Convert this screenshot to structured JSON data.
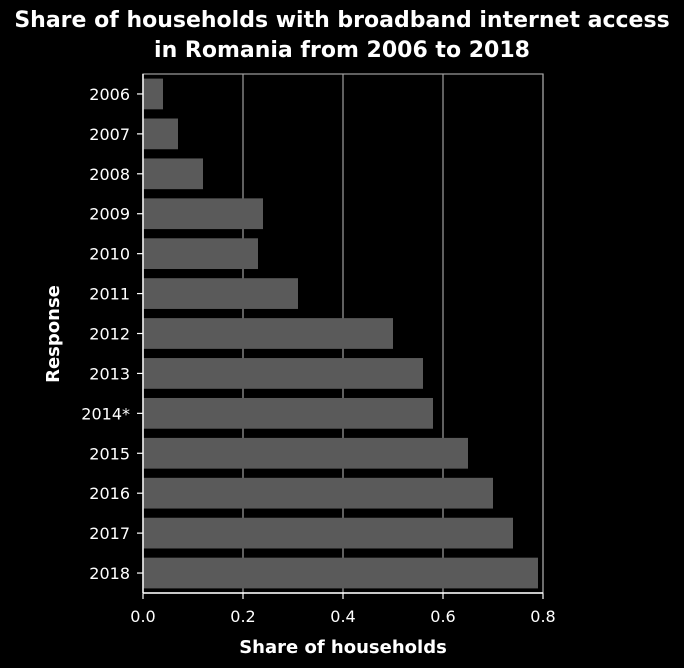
{
  "chart_data": {
    "type": "bar",
    "orientation": "horizontal",
    "title": "Share of households with broadband internet access in Romania from 2006 to 2018",
    "xlabel": "Share of households",
    "ylabel": "Response",
    "categories": [
      "2006",
      "2007",
      "2008",
      "2009",
      "2010",
      "2011",
      "2012",
      "2013",
      "2014*",
      "2015",
      "2016",
      "2017",
      "2018"
    ],
    "values": [
      0.04,
      0.07,
      0.12,
      0.24,
      0.23,
      0.31,
      0.5,
      0.56,
      0.58,
      0.65,
      0.7,
      0.74,
      0.79
    ],
    "xlim": [
      0,
      0.8
    ],
    "xticks": [
      "0.0",
      "0.2",
      "0.4",
      "0.6",
      "0.8"
    ],
    "grid": true,
    "colors": {
      "background": "#000000",
      "bar": "#5a5a5a",
      "grid": "#a0a0a0",
      "text": "#ffffff"
    }
  }
}
